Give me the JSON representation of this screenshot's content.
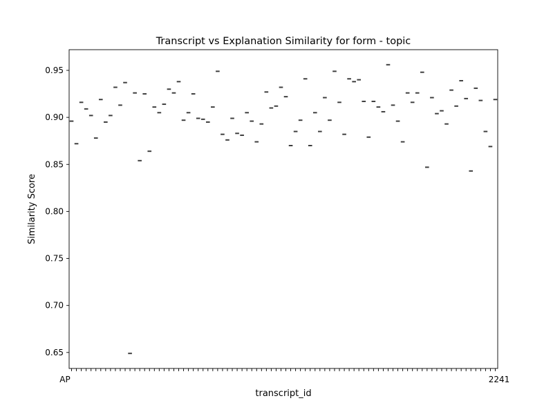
{
  "chart_data": {
    "type": "box",
    "title": "Transcript vs Explanation Similarity for form - topic",
    "xlabel": "transcript_id",
    "ylabel": "Similarity Score",
    "ylim": [
      0.633,
      0.972
    ],
    "yticks": [
      0.65,
      0.7,
      0.75,
      0.8,
      0.85,
      0.9,
      0.95
    ],
    "ytick_labels": [
      "0.65",
      "0.70",
      "0.75",
      "0.80",
      "0.85",
      "0.90",
      "0.95"
    ],
    "xtick_labels_note": "x tick labels are overlapped and illegible except the first and last",
    "x_first_label": "AP",
    "x_last_label": "2241",
    "values": [
      0.896,
      0.872,
      0.916,
      0.909,
      0.902,
      0.878,
      0.919,
      0.895,
      0.902,
      0.932,
      0.913,
      0.937,
      0.649,
      0.926,
      0.854,
      0.925,
      0.864,
      0.911,
      0.905,
      0.914,
      0.93,
      0.926,
      0.938,
      0.897,
      0.905,
      0.925,
      0.899,
      0.898,
      0.895,
      0.911,
      0.949,
      0.882,
      0.876,
      0.899,
      0.883,
      0.881,
      0.905,
      0.896,
      0.874,
      0.893,
      0.927,
      0.91,
      0.912,
      0.932,
      0.922,
      0.87,
      0.885,
      0.897,
      0.941,
      0.87,
      0.905,
      0.885,
      0.921,
      0.897,
      0.949,
      0.916,
      0.882,
      0.941,
      0.938,
      0.94,
      0.917,
      0.879,
      0.917,
      0.911,
      0.906,
      0.956,
      0.913,
      0.896,
      0.874,
      0.926,
      0.916,
      0.926,
      0.948,
      0.847,
      0.921,
      0.904,
      0.907,
      0.893,
      0.929,
      0.912,
      0.939,
      0.92,
      0.843,
      0.931,
      0.918,
      0.885,
      0.869,
      0.919
    ],
    "grid": false,
    "legend": "none",
    "colors": {
      "mark": "#3d3d3d",
      "axis": "#000000",
      "background": "#ffffff"
    }
  }
}
